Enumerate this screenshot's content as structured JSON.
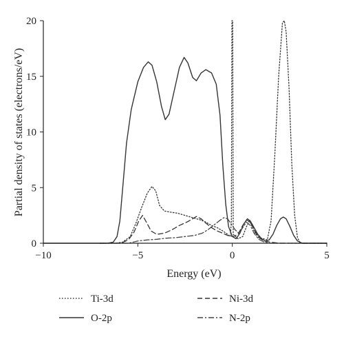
{
  "chart_data": {
    "type": "line",
    "xlabel": "Energy (eV)",
    "ylabel": "Partial density of states (electrons/eV)",
    "xlim": [
      -10,
      5
    ],
    "ylim": [
      0,
      20
    ],
    "x_ticks": [
      -10,
      -5,
      0,
      5
    ],
    "y_ticks": [
      0,
      5,
      10,
      15,
      20
    ],
    "grid": false,
    "legend_position": "bottom",
    "series": [
      {
        "name": "Ti-3d",
        "style": "dotted",
        "color": "#333333",
        "points": [
          [
            -7,
            0
          ],
          [
            -6.2,
            0
          ],
          [
            -5.8,
            0.1
          ],
          [
            -5.4,
            0.6
          ],
          [
            -5.1,
            1.8
          ],
          [
            -4.8,
            3.2
          ],
          [
            -4.5,
            4.5
          ],
          [
            -4.25,
            5.1
          ],
          [
            -4.05,
            4.7
          ],
          [
            -3.85,
            3.4
          ],
          [
            -3.6,
            2.9
          ],
          [
            -3.3,
            2.8
          ],
          [
            -2.9,
            2.7
          ],
          [
            -2.5,
            2.5
          ],
          [
            -2.1,
            2.3
          ],
          [
            -1.7,
            2.1
          ],
          [
            -1.4,
            1.9
          ],
          [
            -1.1,
            1.6
          ],
          [
            -0.8,
            1.4
          ],
          [
            -0.5,
            1.1
          ],
          [
            -0.25,
            0.8
          ],
          [
            -0.1,
            0.6
          ],
          [
            -0.05,
            2.0
          ],
          [
            -0.02,
            20
          ],
          [
            0.02,
            20
          ],
          [
            0.05,
            0.8
          ],
          [
            0.3,
            0.4
          ],
          [
            0.55,
            0.6
          ],
          [
            0.75,
            1.5
          ],
          [
            0.9,
            2.0
          ],
          [
            1.05,
            1.5
          ],
          [
            1.25,
            0.8
          ],
          [
            1.45,
            0.5
          ],
          [
            1.65,
            0.4
          ],
          [
            1.85,
            0.3
          ],
          [
            2.05,
            2.0
          ],
          [
            2.25,
            8.0
          ],
          [
            2.45,
            15.0
          ],
          [
            2.65,
            19.8
          ],
          [
            2.75,
            20
          ],
          [
            2.85,
            19.0
          ],
          [
            3.0,
            14.0
          ],
          [
            3.15,
            7.0
          ],
          [
            3.3,
            2.5
          ],
          [
            3.45,
            0.5
          ],
          [
            3.6,
            0
          ],
          [
            5,
            0
          ]
        ]
      },
      {
        "name": "Ni-3d",
        "style": "dashed",
        "color": "#333333",
        "points": [
          [
            -7,
            0
          ],
          [
            -5.9,
            0
          ],
          [
            -5.5,
            0.3
          ],
          [
            -5.2,
            1.0
          ],
          [
            -4.95,
            2.0
          ],
          [
            -4.75,
            2.5
          ],
          [
            -4.55,
            1.9
          ],
          [
            -4.3,
            1.1
          ],
          [
            -4.0,
            0.8
          ],
          [
            -3.6,
            0.9
          ],
          [
            -3.2,
            1.2
          ],
          [
            -2.8,
            1.6
          ],
          [
            -2.4,
            1.9
          ],
          [
            -2.1,
            2.2
          ],
          [
            -1.9,
            2.4
          ],
          [
            -1.65,
            2.2
          ],
          [
            -1.4,
            1.8
          ],
          [
            -1.1,
            1.4
          ],
          [
            -0.8,
            1.1
          ],
          [
            -0.5,
            0.9
          ],
          [
            -0.25,
            0.7
          ],
          [
            0.05,
            0.6
          ],
          [
            0.3,
            0.8
          ],
          [
            0.55,
            1.6
          ],
          [
            0.75,
            2.1
          ],
          [
            0.95,
            1.9
          ],
          [
            1.15,
            1.2
          ],
          [
            1.4,
            0.5
          ],
          [
            1.7,
            0.2
          ],
          [
            2.0,
            0.1
          ],
          [
            2.5,
            0
          ],
          [
            5,
            0
          ]
        ]
      },
      {
        "name": "O-2p",
        "style": "solid",
        "color": "#333333",
        "points": [
          [
            -10,
            0
          ],
          [
            -6.6,
            0
          ],
          [
            -6.3,
            0.1
          ],
          [
            -6.1,
            0.6
          ],
          [
            -5.95,
            2.0
          ],
          [
            -5.8,
            5.0
          ],
          [
            -5.6,
            9.0
          ],
          [
            -5.35,
            12.0
          ],
          [
            -5.0,
            14.5
          ],
          [
            -4.7,
            15.8
          ],
          [
            -4.45,
            16.3
          ],
          [
            -4.25,
            16.0
          ],
          [
            -4.0,
            14.5
          ],
          [
            -3.75,
            12.3
          ],
          [
            -3.55,
            11.1
          ],
          [
            -3.35,
            11.6
          ],
          [
            -3.1,
            13.5
          ],
          [
            -2.8,
            15.8
          ],
          [
            -2.55,
            16.7
          ],
          [
            -2.35,
            16.2
          ],
          [
            -2.1,
            14.9
          ],
          [
            -1.9,
            14.6
          ],
          [
            -1.65,
            15.3
          ],
          [
            -1.4,
            15.6
          ],
          [
            -1.1,
            15.3
          ],
          [
            -0.85,
            14.3
          ],
          [
            -0.65,
            11.5
          ],
          [
            -0.5,
            7.0
          ],
          [
            -0.35,
            3.5
          ],
          [
            -0.2,
            1.5
          ],
          [
            0.0,
            0.6
          ],
          [
            0.2,
            0.4
          ],
          [
            0.4,
            0.9
          ],
          [
            0.6,
            1.7
          ],
          [
            0.8,
            2.2
          ],
          [
            0.95,
            2.0
          ],
          [
            1.15,
            1.4
          ],
          [
            1.35,
            0.8
          ],
          [
            1.55,
            0.4
          ],
          [
            1.75,
            0.2
          ],
          [
            1.95,
            0.3
          ],
          [
            2.15,
            0.8
          ],
          [
            2.35,
            1.6
          ],
          [
            2.55,
            2.2
          ],
          [
            2.7,
            2.35
          ],
          [
            2.85,
            2.2
          ],
          [
            3.05,
            1.5
          ],
          [
            3.25,
            0.7
          ],
          [
            3.45,
            0.2
          ],
          [
            3.7,
            0
          ],
          [
            5,
            0
          ]
        ]
      },
      {
        "name": "N-2p",
        "style": "dashdot",
        "color": "#444444",
        "points": [
          [
            -7,
            0
          ],
          [
            -5.5,
            0
          ],
          [
            -5.0,
            0.2
          ],
          [
            -4.5,
            0.3
          ],
          [
            -4.0,
            0.35
          ],
          [
            -3.5,
            0.45
          ],
          [
            -3.0,
            0.5
          ],
          [
            -2.5,
            0.6
          ],
          [
            -2.0,
            0.7
          ],
          [
            -1.6,
            0.9
          ],
          [
            -1.3,
            1.2
          ],
          [
            -1.0,
            1.6
          ],
          [
            -0.7,
            2.0
          ],
          [
            -0.45,
            2.3
          ],
          [
            -0.25,
            2.2
          ],
          [
            -0.05,
            1.7
          ],
          [
            0.15,
            1.2
          ],
          [
            0.35,
            0.9
          ],
          [
            0.55,
            1.4
          ],
          [
            0.75,
            1.9
          ],
          [
            0.95,
            1.6
          ],
          [
            1.15,
            0.9
          ],
          [
            1.4,
            0.35
          ],
          [
            1.7,
            0.1
          ],
          [
            2.0,
            0
          ],
          [
            5,
            0
          ]
        ]
      }
    ]
  }
}
